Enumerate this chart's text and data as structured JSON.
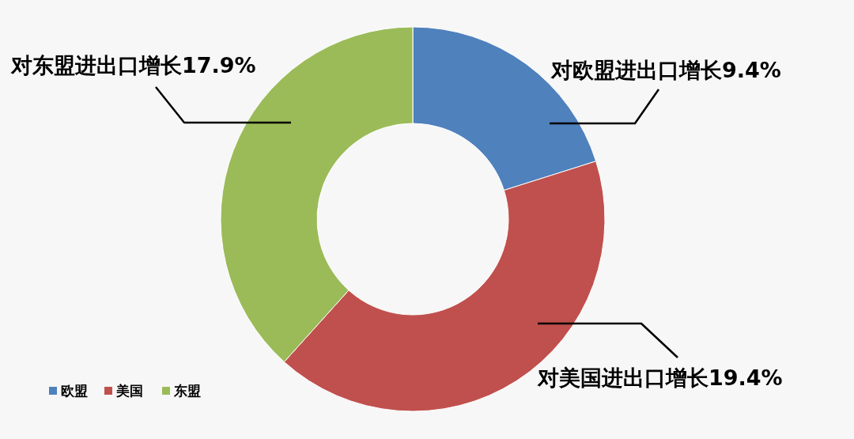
{
  "chart_data": {
    "type": "donut",
    "categories": [
      "欧盟",
      "美国",
      "东盟"
    ],
    "values": [
      9.4,
      19.4,
      17.9
    ],
    "colors": [
      "#4f81bd",
      "#c0504d",
      "#9bbb59"
    ],
    "value_labels": [
      "对欧盟进出口增长9.4%",
      "对美国进出口增长19.4%",
      "对东盟进出口增长17.9%"
    ],
    "legend": "bottom left"
  }
}
